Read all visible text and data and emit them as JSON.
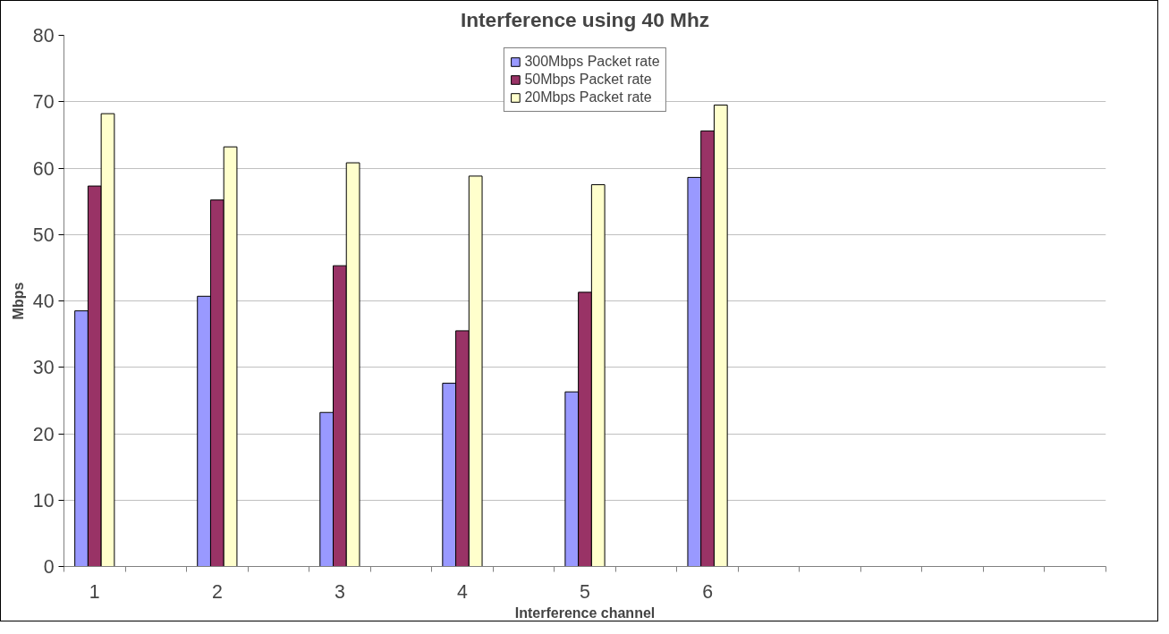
{
  "chart_data": {
    "type": "bar",
    "title": "Interference using 40 Mhz",
    "xlabel": "Interference channel",
    "ylabel": "Mbps",
    "categories": [
      "1",
      null,
      "2",
      null,
      "3",
      null,
      "4",
      null,
      "5",
      null,
      "6",
      null,
      null,
      null,
      null,
      null,
      null
    ],
    "series": [
      {
        "name": "300Mbps Packet rate",
        "color": "#9999ff",
        "values": [
          38.5,
          null,
          40.7,
          null,
          23.2,
          null,
          27.6,
          null,
          26.3,
          null,
          58.6,
          null,
          null,
          null,
          null,
          null,
          null
        ]
      },
      {
        "name": "50Mbps Packet rate",
        "color": "#993366",
        "values": [
          57.3,
          null,
          55.2,
          null,
          45.3,
          null,
          35.5,
          null,
          41.3,
          null,
          65.6,
          null,
          null,
          null,
          null,
          null,
          null
        ]
      },
      {
        "name": "20Mbps Packet rate",
        "color": "#ffffcc",
        "values": [
          68.2,
          null,
          63.2,
          null,
          60.8,
          null,
          58.8,
          null,
          57.5,
          null,
          69.5,
          null,
          null,
          null,
          null,
          null,
          null
        ]
      }
    ],
    "ylim": [
      0,
      80
    ],
    "yticks": [
      0,
      10,
      20,
      30,
      40,
      50,
      60,
      70,
      80
    ],
    "grid": "y",
    "legend": "top"
  }
}
